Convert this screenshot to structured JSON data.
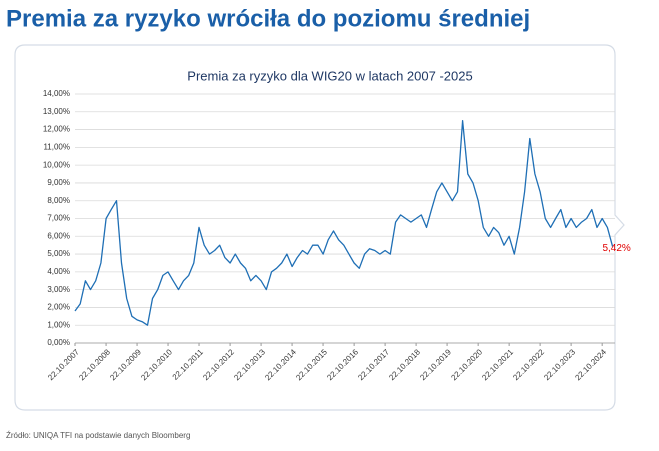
{
  "headline": "Premia za ryzyko wróciła do poziomu średniej",
  "source": "Źródło: UNIQA TFI na podstawie danych Bloomberg",
  "chart_data": {
    "type": "line",
    "title": "Premia za ryzyko dla WIG20 w latach 2007 -2025",
    "x": [
      "22.10.2007",
      "22.12.2007",
      "22.02.2008",
      "22.04.2008",
      "22.06.2008",
      "22.08.2008",
      "22.10.2008",
      "22.12.2008",
      "22.02.2009",
      "22.04.2009",
      "22.06.2009",
      "22.08.2009",
      "22.10.2009",
      "22.12.2009",
      "22.02.2010",
      "22.04.2010",
      "22.06.2010",
      "22.08.2010",
      "22.10.2010",
      "22.12.2010",
      "22.02.2011",
      "22.04.2011",
      "22.06.2011",
      "22.08.2011",
      "22.10.2011",
      "22.12.2011",
      "22.02.2012",
      "22.04.2012",
      "22.06.2012",
      "22.08.2012",
      "22.10.2012",
      "22.12.2012",
      "22.02.2013",
      "22.04.2013",
      "22.06.2013",
      "22.08.2013",
      "22.10.2013",
      "22.12.2013",
      "22.02.2014",
      "22.04.2014",
      "22.06.2014",
      "22.08.2014",
      "22.10.2014",
      "22.12.2014",
      "22.02.2015",
      "22.04.2015",
      "22.06.2015",
      "22.08.2015",
      "22.10.2015",
      "22.12.2015",
      "22.02.2016",
      "22.04.2016",
      "22.06.2016",
      "22.08.2016",
      "22.10.2016",
      "22.12.2016",
      "22.02.2017",
      "22.04.2017",
      "22.06.2017",
      "22.08.2017",
      "22.10.2017",
      "22.12.2017",
      "22.02.2018",
      "22.04.2018",
      "22.06.2018",
      "22.08.2018",
      "22.10.2018",
      "22.12.2018",
      "22.02.2019",
      "22.04.2019",
      "22.06.2019",
      "22.08.2019",
      "22.10.2019",
      "22.12.2019",
      "22.02.2020",
      "22.04.2020",
      "22.06.2020",
      "22.08.2020",
      "22.10.2020",
      "22.12.2020",
      "22.02.2021",
      "22.04.2021",
      "22.06.2021",
      "22.08.2021",
      "22.10.2021",
      "22.12.2021",
      "22.02.2022",
      "22.04.2022",
      "22.06.2022",
      "22.08.2022",
      "22.10.2022",
      "22.12.2022",
      "22.02.2023",
      "22.04.2023",
      "22.06.2023",
      "22.08.2023",
      "22.10.2023",
      "22.12.2023",
      "22.02.2024",
      "22.04.2024",
      "22.06.2024",
      "22.08.2024",
      "22.10.2024",
      "22.12.2024",
      "22.02.2025"
    ],
    "series": [
      {
        "name": "Premia za ryzyko",
        "color": "#1f6fb5",
        "values": [
          1.8,
          2.2,
          3.5,
          3.0,
          3.5,
          4.5,
          7.0,
          7.5,
          8.0,
          4.5,
          2.5,
          1.5,
          1.3,
          1.2,
          1.0,
          2.5,
          3.0,
          3.8,
          4.0,
          3.5,
          3.0,
          3.5,
          3.8,
          4.5,
          6.5,
          5.5,
          5.0,
          5.2,
          5.5,
          4.8,
          4.5,
          5.0,
          4.5,
          4.2,
          3.5,
          3.8,
          3.5,
          3.0,
          4.0,
          4.2,
          4.5,
          5.0,
          4.3,
          4.8,
          5.2,
          5.0,
          5.5,
          5.5,
          5.0,
          5.8,
          6.3,
          5.8,
          5.5,
          5.0,
          4.5,
          4.2,
          5.0,
          5.3,
          5.2,
          5.0,
          5.2,
          5.0,
          6.8,
          7.2,
          7.0,
          6.8,
          7.0,
          7.2,
          6.5,
          7.5,
          8.5,
          9.0,
          8.5,
          8.0,
          8.5,
          12.5,
          9.5,
          9.0,
          8.0,
          6.5,
          6.0,
          6.5,
          6.2,
          5.5,
          6.0,
          5.0,
          6.5,
          8.5,
          11.5,
          9.5,
          8.5,
          7.0,
          6.5,
          7.0,
          7.5,
          6.5,
          7.0,
          6.5,
          6.8,
          7.0,
          7.5,
          6.5,
          7.0,
          6.5,
          5.42
        ]
      }
    ],
    "annotation": "5,42%",
    "xlim": [
      "22.10.2007",
      "22.03.2025"
    ],
    "xticks": [
      "22.10.2007",
      "22.10.2008",
      "22.10.2009",
      "22.10.2010",
      "22.10.2011",
      "22.10.2012",
      "22.10.2013",
      "22.10.2014",
      "22.10.2015",
      "22.10.2016",
      "22.10.2017",
      "22.10.2018",
      "22.10.2019",
      "22.10.2020",
      "22.10.2021",
      "22.10.2022",
      "22.10.2023",
      "22.10.2024"
    ],
    "ylim": [
      0,
      14
    ],
    "yticks": [
      {
        "value": 0,
        "label": "0,00%"
      },
      {
        "value": 1,
        "label": "1,00%"
      },
      {
        "value": 2,
        "label": "2,00%"
      },
      {
        "value": 3,
        "label": "3,00%"
      },
      {
        "value": 4,
        "label": "4,00%"
      },
      {
        "value": 5,
        "label": "5,00%"
      },
      {
        "value": 6,
        "label": "6,00%"
      },
      {
        "value": 7,
        "label": "7,00%"
      },
      {
        "value": 8,
        "label": "8,00%"
      },
      {
        "value": 9,
        "label": "9,00%"
      },
      {
        "value": 10,
        "label": "10,00%"
      },
      {
        "value": 11,
        "label": "11,00%"
      },
      {
        "value": 12,
        "label": "12,00%"
      },
      {
        "value": 13,
        "label": "13,00%"
      },
      {
        "value": 14,
        "label": "14,00%"
      }
    ],
    "grid": true
  }
}
